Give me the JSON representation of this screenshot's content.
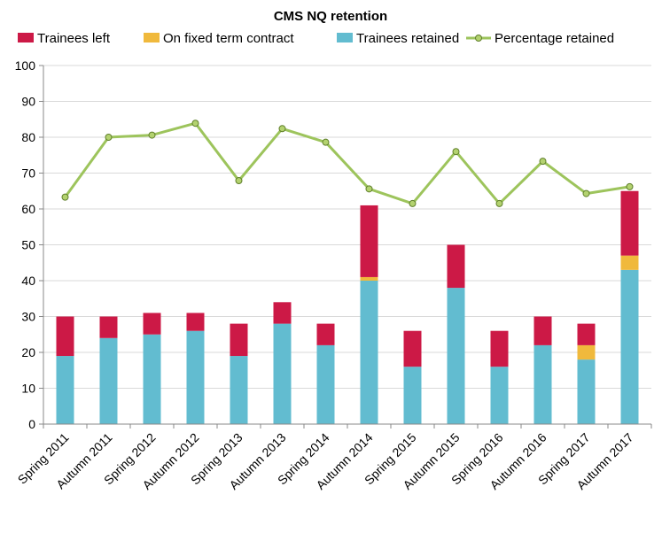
{
  "chart_data": {
    "type": "bar",
    "title": "CMS NQ retention",
    "xlabel": "",
    "ylabel": "",
    "ylim": [
      0,
      100
    ],
    "yticks": [
      0,
      10,
      20,
      30,
      40,
      50,
      60,
      70,
      80,
      90,
      100
    ],
    "grid": true,
    "legend_position": "top",
    "categories": [
      "Spring 2011",
      "Autumn 2011",
      "Spring 2012",
      "Autumn 2012",
      "Spring 2013",
      "Autumn 2013",
      "Spring 2014",
      "Autumn 2014",
      "Spring 2015",
      "Autumn 2015",
      "Spring 2016",
      "Autumn 2016",
      "Spring 2017",
      "Autumn 2017"
    ],
    "series": [
      {
        "name": "Trainees retained",
        "type": "bar",
        "stack": "total",
        "color": "#62bcd0",
        "values": [
          19,
          24,
          25,
          26,
          19,
          28,
          22,
          40,
          16,
          38,
          16,
          22,
          18,
          43
        ]
      },
      {
        "name": "On fixed term contract",
        "type": "bar",
        "stack": "total",
        "color": "#f0b93c",
        "values": [
          0,
          0,
          0,
          0,
          0,
          0,
          0,
          1,
          0,
          0,
          0,
          0,
          4,
          4
        ]
      },
      {
        "name": "Trainees left",
        "type": "bar",
        "stack": "total",
        "color": "#cc1946",
        "values": [
          11,
          6,
          6,
          5,
          9,
          6,
          6,
          20,
          10,
          12,
          10,
          8,
          6,
          18
        ]
      },
      {
        "name": "Percentage retained",
        "type": "line",
        "color": "#9dc45c",
        "marker_fill": "#b3d26f",
        "values": [
          63.3,
          80,
          80.6,
          83.9,
          67.9,
          82.4,
          78.6,
          65.6,
          61.5,
          76,
          61.5,
          73.3,
          64.3,
          66.2
        ]
      }
    ],
    "legend": [
      {
        "label": "Trainees left",
        "color": "#cc1946",
        "kind": "box"
      },
      {
        "label": "On fixed term contract",
        "color": "#f0b93c",
        "kind": "box"
      },
      {
        "label": "Trainees retained",
        "color": "#62bcd0",
        "kind": "box"
      },
      {
        "label": "Percentage retained",
        "color": "#9dc45c",
        "kind": "line"
      }
    ]
  }
}
